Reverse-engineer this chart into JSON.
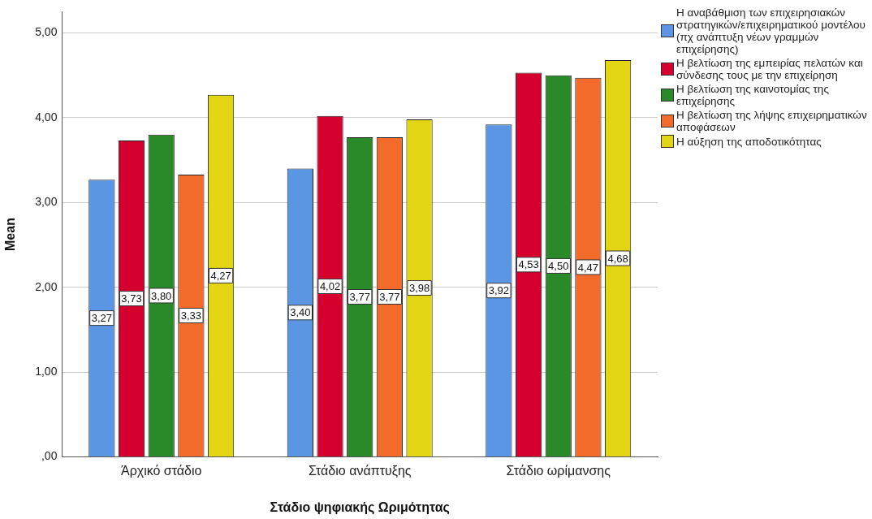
{
  "chart_data": {
    "type": "bar",
    "xlabel": "Στάδιο ψηφιακής Ωριμότητας",
    "ylabel": "Mean",
    "categories": [
      "Άρχικό στάδιο",
      "Στάδιο ανάπτυξης",
      "Στάδιο ωρίμανσης"
    ],
    "series": [
      {
        "name": "Η αναβάθμιση των επιχειρησιακών στρατηγικών/επιχειρηματικού μοντέλου (πχ ανάπτυξη νέων γραμμών επιχείρησης)",
        "color": "#5a96e3",
        "values": [
          3.27,
          3.4,
          3.92
        ],
        "value_labels": [
          "3,27",
          "3,40",
          "3,92"
        ]
      },
      {
        "name": "Η βελτίωση της εμπειρίας πελατών και σύνδεσης τους με την επιχείρηση",
        "color": "#d6002f",
        "values": [
          3.73,
          4.02,
          4.53
        ],
        "value_labels": [
          "3,73",
          "4,02",
          "4,53"
        ]
      },
      {
        "name": "Η βελτίωση της καινοτομίας της επιχείρησης",
        "color": "#2a8a2a",
        "values": [
          3.8,
          3.77,
          4.5
        ],
        "value_labels": [
          "3,80",
          "3,77",
          "4,50"
        ]
      },
      {
        "name": "Η βελτίωση της λήψης επιχειρηματικών αποφάσεων",
        "color": "#f26b2a",
        "values": [
          3.33,
          3.77,
          4.47
        ],
        "value_labels": [
          "3,33",
          "3,77",
          "4,47"
        ]
      },
      {
        "name": "Η αύξηση της αποδοτικότητας",
        "color": "#e2d614",
        "values": [
          4.27,
          3.98,
          4.68
        ],
        "value_labels": [
          "4,27",
          "3,98",
          "4,68"
        ]
      }
    ],
    "ylim": [
      0,
      5.25
    ],
    "yticks": [
      {
        "value": 0,
        "label": ",00"
      },
      {
        "value": 1,
        "label": "1,00"
      },
      {
        "value": 2,
        "label": "2,00"
      },
      {
        "value": 3,
        "label": "3,00"
      },
      {
        "value": 4,
        "label": "4,00"
      },
      {
        "value": 5,
        "label": "5,00"
      }
    ],
    "grid": "y",
    "legend": "right"
  }
}
